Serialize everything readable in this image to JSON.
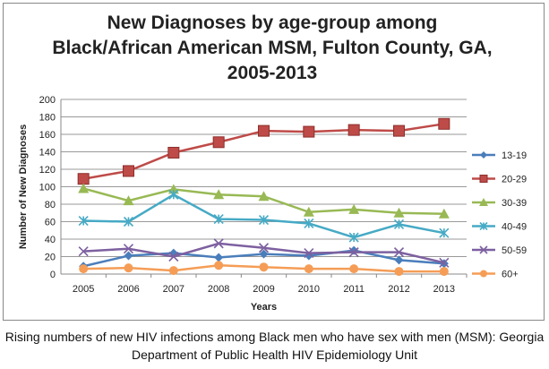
{
  "chart_data": {
    "type": "line",
    "title": "New Diagnoses by age-group among Black/African American MSM, Fulton County, GA, 2005-2013",
    "xlabel": "Years",
    "ylabel": "Number of New Diagnoses",
    "ylim": [
      0,
      200
    ],
    "yticks": [
      0,
      20,
      40,
      60,
      80,
      100,
      120,
      140,
      160,
      180,
      200
    ],
    "grid": true,
    "legend": "right",
    "categories": [
      "2005",
      "2006",
      "2007",
      "2008",
      "2009",
      "2010",
      "2011",
      "2012",
      "2013"
    ],
    "series": [
      {
        "name": "13-19",
        "color": "#4a7ebb",
        "marker": "diamond",
        "values": [
          9,
          21,
          24,
          19,
          23,
          21,
          27,
          16,
          12
        ]
      },
      {
        "name": "20-29",
        "color": "#be4b48",
        "marker": "square",
        "values": [
          109,
          118,
          139,
          151,
          164,
          163,
          165,
          164,
          172
        ]
      },
      {
        "name": "30-39",
        "color": "#98b954",
        "marker": "triangle",
        "values": [
          98,
          84,
          97,
          91,
          89,
          71,
          74,
          70,
          69
        ]
      },
      {
        "name": "40-49",
        "color": "#46aac5",
        "marker": "star",
        "values": [
          61,
          60,
          91,
          63,
          62,
          58,
          42,
          57,
          47
        ]
      },
      {
        "name": "50-59",
        "color": "#7d60a0",
        "marker": "x",
        "values": [
          26,
          29,
          20,
          35,
          30,
          24,
          25,
          25,
          13
        ]
      },
      {
        "name": "60+",
        "color": "#f59d56",
        "marker": "circle",
        "values": [
          6,
          7,
          4,
          10,
          8,
          6,
          6,
          3,
          3
        ]
      }
    ]
  },
  "caption": "Rising numbers of new HIV infections among Black men who have sex with men (MSM): Georgia Department of Public Health HIV Epidemiology Unit"
}
